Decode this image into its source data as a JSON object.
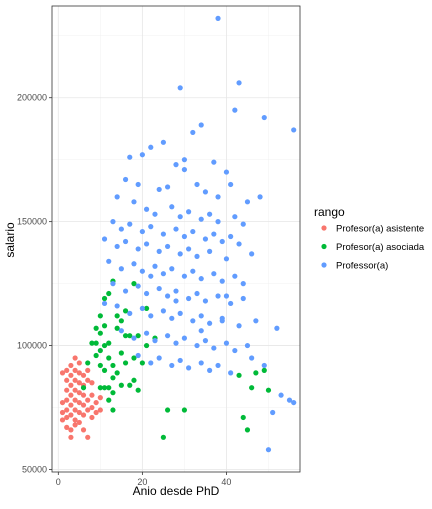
{
  "chart_data": {
    "type": "scatter",
    "xlabel": "Anio desde PhD",
    "ylabel": "salario",
    "xlim": [
      -1.5,
      57.5
    ],
    "ylim": [
      49000,
      237000
    ],
    "x_ticks": [
      0,
      20,
      40
    ],
    "y_ticks": [
      50000,
      100000,
      150000,
      200000
    ],
    "y_tick_labels": [
      "50000",
      "100000",
      "150000",
      "200000"
    ],
    "grid": true,
    "legend": {
      "title": "rango",
      "placement": "right",
      "entries": [
        "Profesor(a) asistente",
        "Profesor(a) asociada",
        "Professor(a)"
      ]
    },
    "series": [
      {
        "name": "Profesor(a) asistente",
        "color": "#F8766D",
        "points": [
          [
            1,
            89000
          ],
          [
            1,
            77000
          ],
          [
            1,
            73000
          ],
          [
            1,
            70000
          ],
          [
            2,
            90000
          ],
          [
            2,
            86000
          ],
          [
            2,
            82000
          ],
          [
            2,
            78000
          ],
          [
            2,
            74000
          ],
          [
            2,
            71000
          ],
          [
            2,
            67000
          ],
          [
            3,
            92000
          ],
          [
            3,
            88000
          ],
          [
            3,
            84000
          ],
          [
            3,
            80000
          ],
          [
            3,
            76000
          ],
          [
            3,
            72000
          ],
          [
            3,
            66000
          ],
          [
            3,
            63000
          ],
          [
            4,
            95000
          ],
          [
            4,
            90000
          ],
          [
            4,
            86000
          ],
          [
            4,
            82000
          ],
          [
            4,
            78000
          ],
          [
            4,
            74000
          ],
          [
            4,
            70000
          ],
          [
            4,
            68000
          ],
          [
            5,
            93000
          ],
          [
            5,
            89000
          ],
          [
            5,
            85000
          ],
          [
            5,
            81000
          ],
          [
            5,
            77000
          ],
          [
            5,
            73000
          ],
          [
            5,
            69000
          ],
          [
            6,
            88000
          ],
          [
            6,
            84000
          ],
          [
            6,
            80000
          ],
          [
            6,
            76000
          ],
          [
            6,
            72000
          ],
          [
            6,
            66000
          ],
          [
            7,
            90000
          ],
          [
            7,
            86000
          ],
          [
            7,
            78000
          ],
          [
            7,
            74000
          ],
          [
            7,
            63000
          ],
          [
            8,
            85000
          ],
          [
            8,
            80000
          ],
          [
            8,
            75000
          ],
          [
            8,
            71000
          ],
          [
            9,
            77000
          ],
          [
            9,
            73000
          ],
          [
            10,
            79000
          ],
          [
            10,
            74000
          ]
        ]
      },
      {
        "name": "Profesor(a) asociada",
        "color": "#00BA38",
        "points": [
          [
            6,
            83000
          ],
          [
            7,
            93000
          ],
          [
            8,
            101000
          ],
          [
            9,
            101000
          ],
          [
            9,
            96000
          ],
          [
            9,
            107000
          ],
          [
            10,
            92000
          ],
          [
            10,
            98000
          ],
          [
            10,
            105000
          ],
          [
            10,
            112000
          ],
          [
            10,
            83000
          ],
          [
            11,
            119000
          ],
          [
            11,
            108000
          ],
          [
            11,
            100000
          ],
          [
            11,
            90000
          ],
          [
            11,
            83000
          ],
          [
            12,
            101000
          ],
          [
            12,
            95000
          ],
          [
            12,
            121000
          ],
          [
            12,
            83000
          ],
          [
            12,
            78000
          ],
          [
            13,
            92000
          ],
          [
            13,
            87000
          ],
          [
            13,
            81000
          ],
          [
            13,
            74000
          ],
          [
            13,
            126000
          ],
          [
            14,
            112000
          ],
          [
            14,
            107000
          ],
          [
            14,
            89000
          ],
          [
            15,
            97000
          ],
          [
            15,
            84000
          ],
          [
            15,
            110000
          ],
          [
            16,
            114000
          ],
          [
            16,
            104000
          ],
          [
            16,
            93000
          ],
          [
            17,
            104000
          ],
          [
            17,
            84000
          ],
          [
            18,
            95000
          ],
          [
            18,
            86000
          ],
          [
            18,
            125000
          ],
          [
            19,
            104000
          ],
          [
            19,
            82000
          ],
          [
            20,
            93000
          ],
          [
            21,
            100000
          ],
          [
            21,
            115000
          ],
          [
            23,
            103000
          ],
          [
            25,
            63000
          ],
          [
            26,
            74000
          ],
          [
            30,
            74000
          ],
          [
            43,
            88000
          ],
          [
            44,
            71000
          ],
          [
            45,
            66000
          ],
          [
            46,
            83000
          ],
          [
            47,
            89000
          ],
          [
            49,
            90000
          ],
          [
            50,
            82000
          ]
        ]
      },
      {
        "name": "Professor(a)",
        "color": "#619CFF",
        "points": [
          [
            38,
            232000
          ],
          [
            43,
            206000
          ],
          [
            29,
            204000
          ],
          [
            42,
            195000
          ],
          [
            49,
            192000
          ],
          [
            56,
            187000
          ],
          [
            34,
            189000
          ],
          [
            32,
            186000
          ],
          [
            22,
            180000
          ],
          [
            25,
            182000
          ],
          [
            17,
            176000
          ],
          [
            20,
            177000
          ],
          [
            28,
            173000
          ],
          [
            30,
            171000
          ],
          [
            37,
            174000
          ],
          [
            40,
            170000
          ],
          [
            16,
            167000
          ],
          [
            19,
            165000
          ],
          [
            24,
            163000
          ],
          [
            26,
            164000
          ],
          [
            33,
            165000
          ],
          [
            35,
            162000
          ],
          [
            41,
            165000
          ],
          [
            45,
            158000
          ],
          [
            48,
            160000
          ],
          [
            14,
            160000
          ],
          [
            18,
            158000
          ],
          [
            21,
            155000
          ],
          [
            23,
            153000
          ],
          [
            27,
            156000
          ],
          [
            29,
            152000
          ],
          [
            31,
            154000
          ],
          [
            34,
            151000
          ],
          [
            36,
            153000
          ],
          [
            38,
            150000
          ],
          [
            42,
            152000
          ],
          [
            44,
            149000
          ],
          [
            13,
            150000
          ],
          [
            15,
            147000
          ],
          [
            17,
            149000
          ],
          [
            20,
            146000
          ],
          [
            22,
            148000
          ],
          [
            25,
            145000
          ],
          [
            28,
            147000
          ],
          [
            30,
            144000
          ],
          [
            32,
            146000
          ],
          [
            35,
            143000
          ],
          [
            37,
            145000
          ],
          [
            39,
            142000
          ],
          [
            41,
            144000
          ],
          [
            43,
            141000
          ],
          [
            11,
            143000
          ],
          [
            14,
            140000
          ],
          [
            16,
            142000
          ],
          [
            19,
            139000
          ],
          [
            21,
            141000
          ],
          [
            24,
            138000
          ],
          [
            26,
            140000
          ],
          [
            29,
            137000
          ],
          [
            31,
            139000
          ],
          [
            33,
            136000
          ],
          [
            36,
            138000
          ],
          [
            40,
            135000
          ],
          [
            46,
            137000
          ],
          [
            12,
            134000
          ],
          [
            15,
            131000
          ],
          [
            18,
            133000
          ],
          [
            20,
            130000
          ],
          [
            23,
            132000
          ],
          [
            25,
            129000
          ],
          [
            27,
            131000
          ],
          [
            30,
            128000
          ],
          [
            32,
            130000
          ],
          [
            34,
            127000
          ],
          [
            37,
            129000
          ],
          [
            39,
            126000
          ],
          [
            42,
            128000
          ],
          [
            13,
            125000
          ],
          [
            16,
            122000
          ],
          [
            19,
            124000
          ],
          [
            21,
            121000
          ],
          [
            24,
            123000
          ],
          [
            26,
            120000
          ],
          [
            28,
            122000
          ],
          [
            31,
            119000
          ],
          [
            33,
            121000
          ],
          [
            35,
            118000
          ],
          [
            38,
            120000
          ],
          [
            41,
            117000
          ],
          [
            44,
            119000
          ],
          [
            14,
            116000
          ],
          [
            17,
            113000
          ],
          [
            20,
            115000
          ],
          [
            22,
            112000
          ],
          [
            25,
            114000
          ],
          [
            27,
            111000
          ],
          [
            29,
            113000
          ],
          [
            32,
            110000
          ],
          [
            34,
            112000
          ],
          [
            36,
            109000
          ],
          [
            39,
            111000
          ],
          [
            43,
            108000
          ],
          [
            47,
            110000
          ],
          [
            52,
            107000
          ],
          [
            15,
            106000
          ],
          [
            18,
            103000
          ],
          [
            21,
            105000
          ],
          [
            23,
            102000
          ],
          [
            26,
            104000
          ],
          [
            28,
            101000
          ],
          [
            30,
            103000
          ],
          [
            33,
            100000
          ],
          [
            35,
            102000
          ],
          [
            37,
            99000
          ],
          [
            40,
            101000
          ],
          [
            42,
            98000
          ],
          [
            45,
            100000
          ],
          [
            19,
            96000
          ],
          [
            22,
            93000
          ],
          [
            24,
            95000
          ],
          [
            27,
            92000
          ],
          [
            29,
            94000
          ],
          [
            31,
            91000
          ],
          [
            34,
            93000
          ],
          [
            36,
            90000
          ],
          [
            38,
            92000
          ],
          [
            41,
            89000
          ],
          [
            46,
            95000
          ],
          [
            49,
            92000
          ],
          [
            55,
            78000
          ],
          [
            53,
            80000
          ],
          [
            56,
            77000
          ],
          [
            51,
            73000
          ],
          [
            50,
            58000
          ],
          [
            39,
            110000
          ],
          [
            44,
            125000
          ],
          [
            11,
            117000
          ],
          [
            30,
            175000
          ],
          [
            38,
            160000
          ],
          [
            22,
            128000
          ],
          [
            28,
            118000
          ],
          [
            34,
            106000
          ],
          [
            40,
            120000
          ]
        ]
      }
    ]
  }
}
